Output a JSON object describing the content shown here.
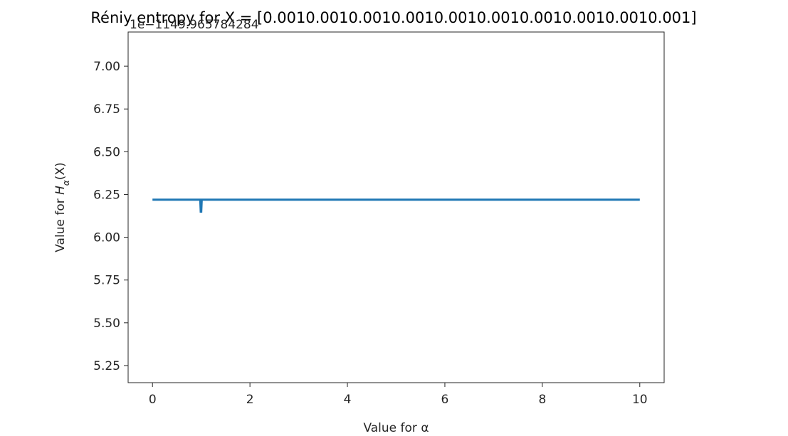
{
  "chart_data": {
    "type": "line",
    "title": "Réniy entropy for X = [0.0010.0010.0010.0010.0010.0010.0010.0010.0010.001]",
    "offset_text": "1e−1149.965784284",
    "xlabel": "Value for α",
    "ylabel": "Value for H_α(X)",
    "xlim": [
      -0.5,
      10.5
    ],
    "ylim": [
      5.15,
      7.2
    ],
    "xticks": [
      0,
      2,
      4,
      6,
      8,
      10
    ],
    "xtick_labels": [
      "0",
      "2",
      "4",
      "6",
      "8",
      "10"
    ],
    "yticks": [
      5.25,
      5.5,
      5.75,
      6.0,
      6.25,
      6.5,
      6.75,
      7.0
    ],
    "ytick_labels": [
      "5.25",
      "5.50",
      "5.75",
      "6.00",
      "6.25",
      "6.50",
      "6.75",
      "7.00"
    ],
    "grid": false,
    "series": [
      {
        "color": "#1f77b4",
        "x": [
          0,
          0.98,
          0.99,
          1.0,
          1.01,
          1.02,
          10
        ],
        "y": [
          6.22,
          6.22,
          6.15,
          6.15,
          6.22,
          6.22,
          6.22
        ]
      }
    ]
  }
}
